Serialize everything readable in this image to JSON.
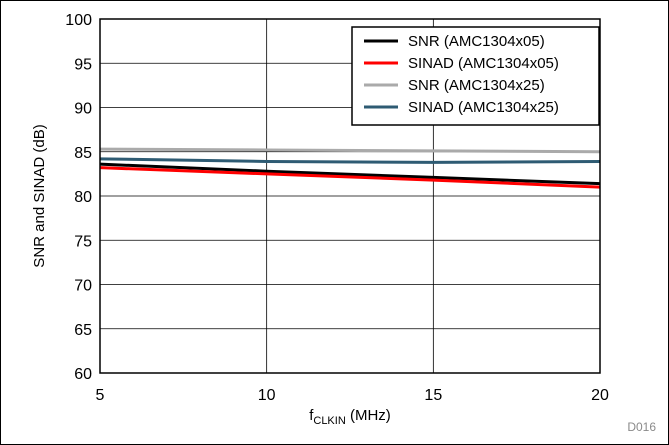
{
  "chart_data": {
    "type": "line",
    "xlabel_main": "f",
    "xlabel_sub": "CLKIN",
    "xlabel_unit": " (MHz)",
    "ylabel": "SNR and SINAD (dB)",
    "xlim": [
      5,
      20
    ],
    "ylim": [
      60,
      100
    ],
    "x_ticks": [
      5,
      10,
      15,
      20
    ],
    "y_ticks": [
      60,
      65,
      70,
      75,
      80,
      85,
      90,
      95,
      100
    ],
    "grid": true,
    "legend_position": "top-right",
    "figure_id": "D016",
    "series": [
      {
        "name": "SNR (AMC1304x05)",
        "color": "#000000",
        "x": [
          5,
          10,
          15,
          20
        ],
        "y": [
          83.6,
          82.8,
          82.1,
          81.4
        ]
      },
      {
        "name": "SINAD (AMC1304x05)",
        "color": "#ff0000",
        "x": [
          5,
          10,
          15,
          20
        ],
        "y": [
          83.2,
          82.5,
          81.8,
          81.0
        ]
      },
      {
        "name": "SNR (AMC1304x25)",
        "color": "#aaaaaa",
        "x": [
          5,
          10,
          15,
          20
        ],
        "y": [
          85.3,
          85.2,
          85.1,
          85.0
        ]
      },
      {
        "name": "SINAD (AMC1304x25)",
        "color": "#2e5b73",
        "x": [
          5,
          10,
          15,
          20
        ],
        "y": [
          84.2,
          83.9,
          83.8,
          83.9
        ]
      }
    ]
  }
}
